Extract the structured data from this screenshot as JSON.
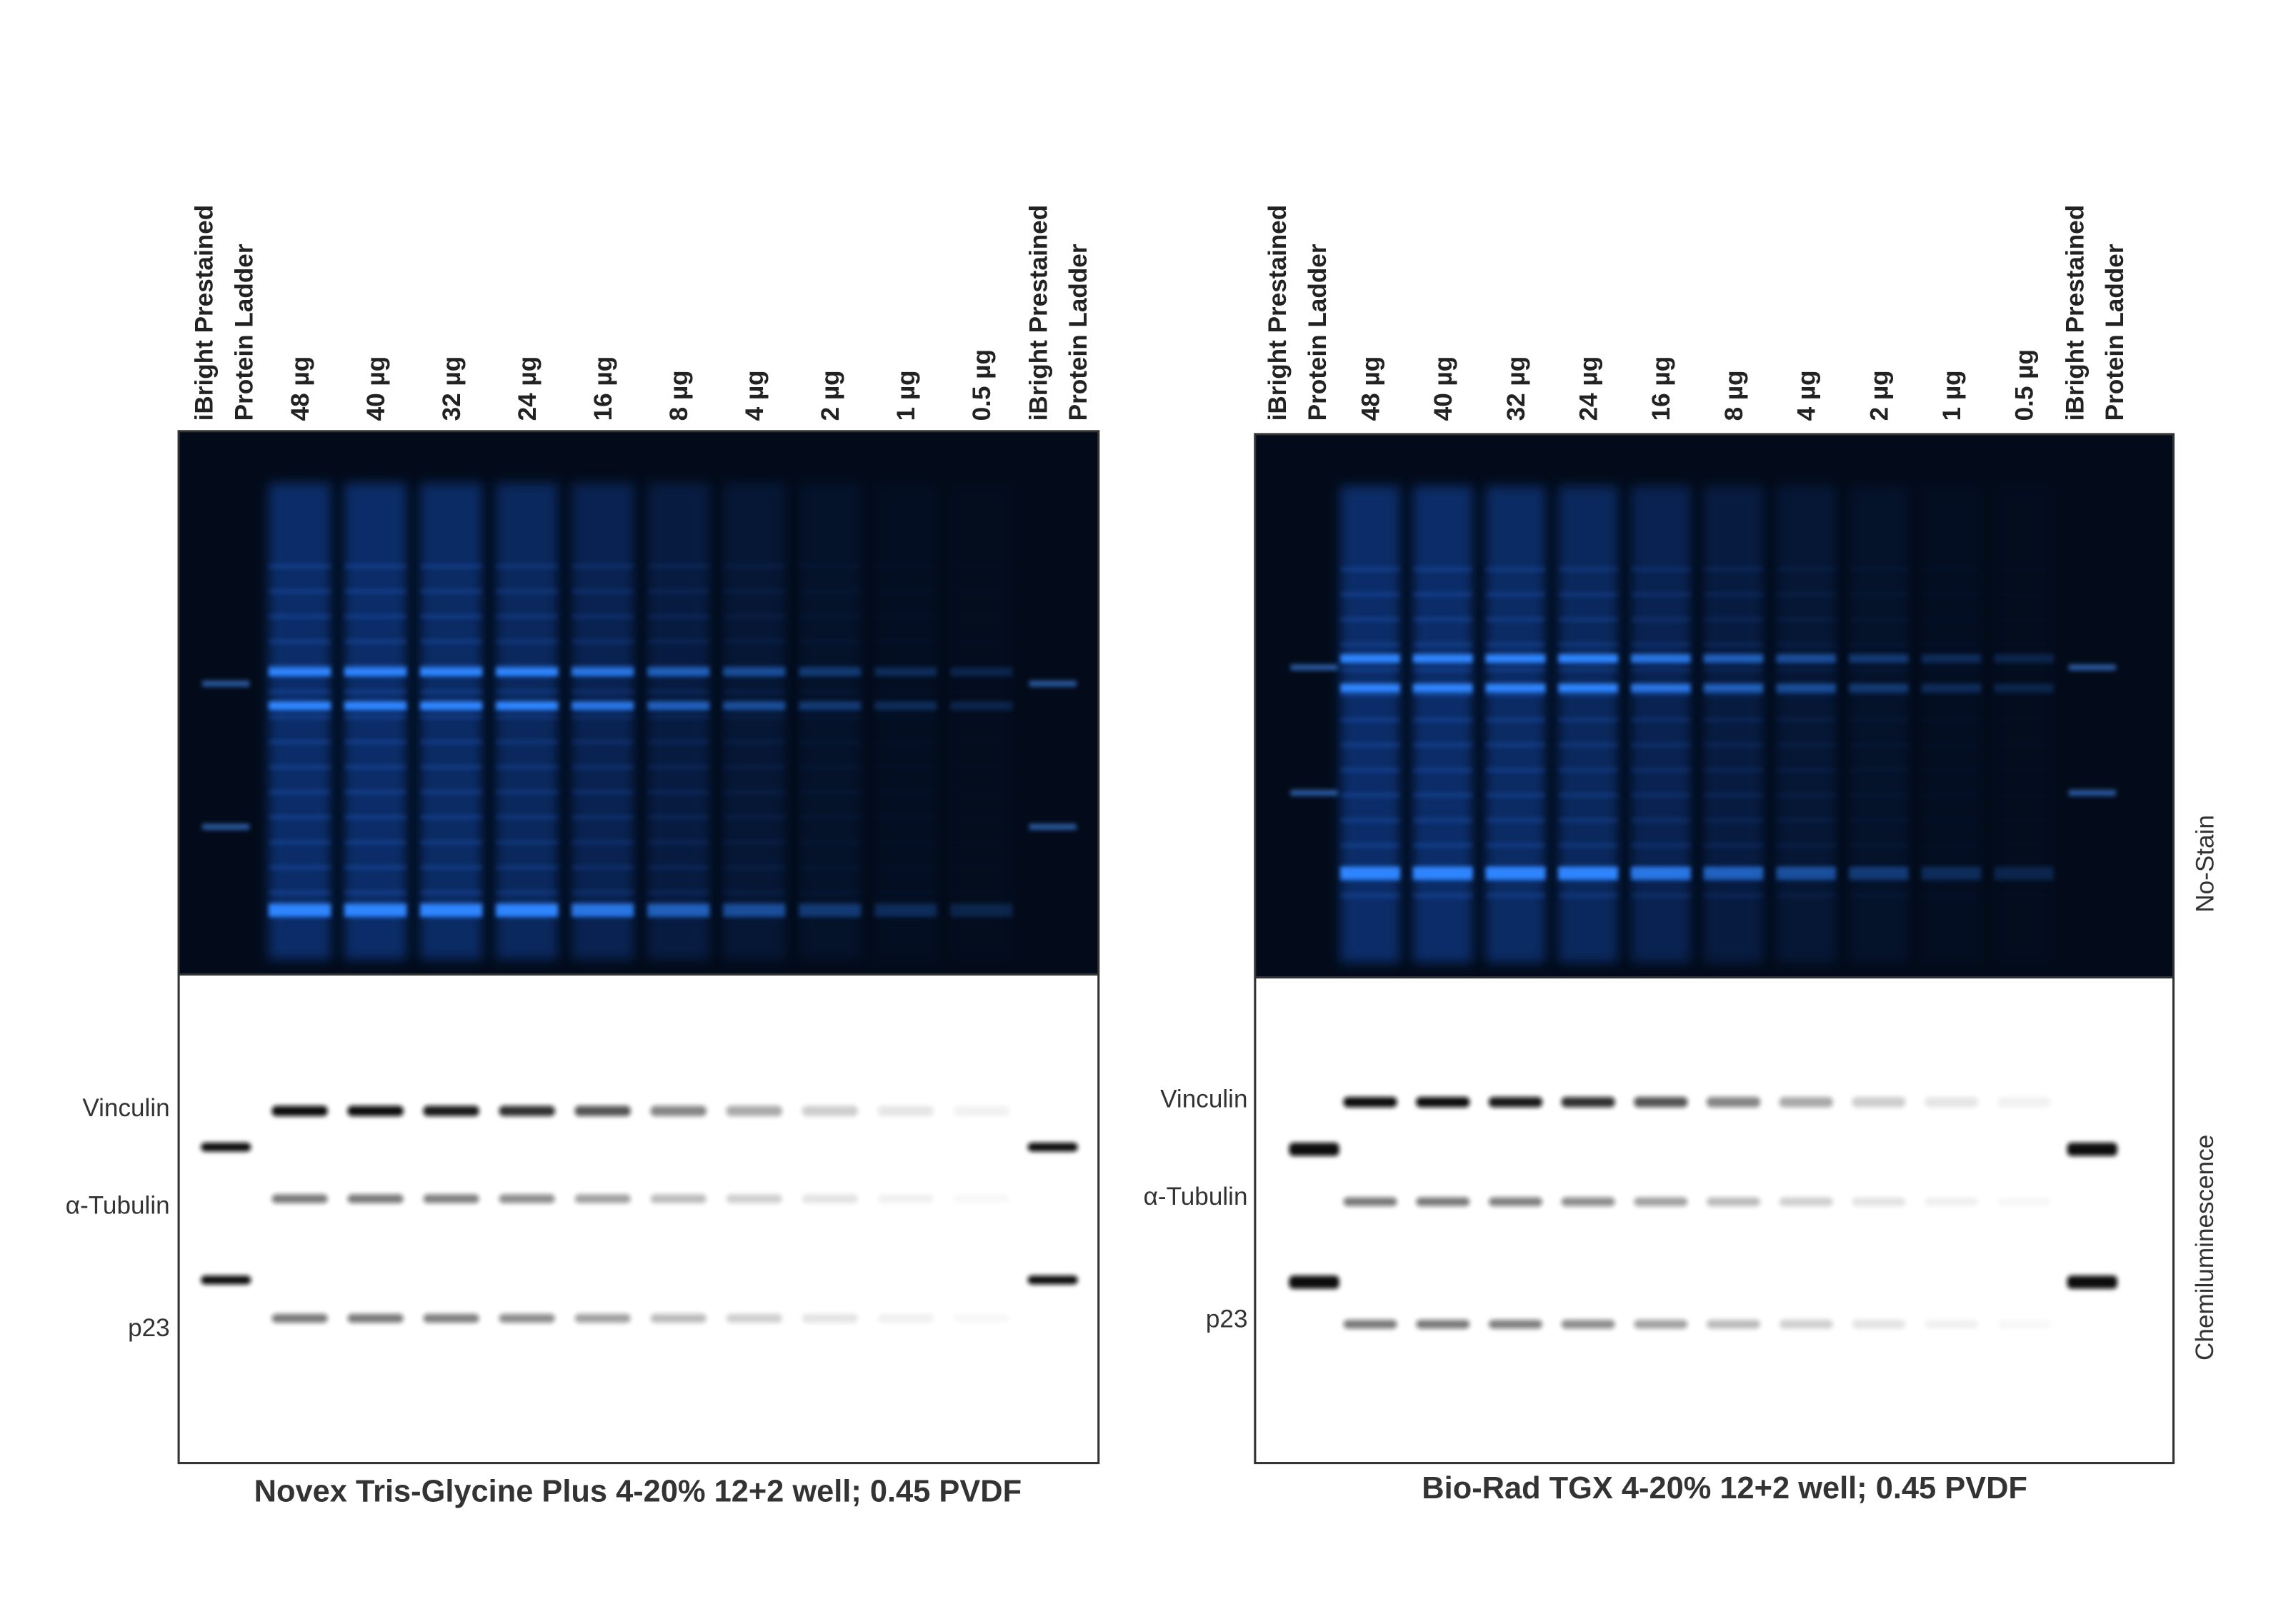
{
  "panels": [
    {
      "ladder_label": [
        "iBright  Prestained",
        "Protein Ladder"
      ],
      "lanes": [
        "48 µg",
        "40 µg",
        "32 µg",
        "24 µg",
        "16 µg",
        "8 µg",
        "4 µg",
        "2 µg",
        "1 µg",
        "0.5 µg"
      ],
      "bands": [
        "Vinculin",
        "α-Tubulin",
        "p23"
      ],
      "caption": "Novex Tris-Glycine Plus 4-20% 12+2 well; 0.45 PVDF"
    },
    {
      "ladder_label": [
        "iBright  Prestained",
        "Protein Ladder"
      ],
      "lanes": [
        "48 µg",
        "40 µg",
        "32 µg",
        "24 µg",
        "16 µg",
        "8 µg",
        "4 µg",
        "2 µg",
        "1 µg",
        "0.5 µg"
      ],
      "bands": [
        "Vinculin",
        "α-Tubulin",
        "p23"
      ],
      "caption": "Bio-Rad TGX 4-20% 12+2 well; 0.45 PVDF"
    }
  ],
  "side_labels": [
    "No-Stain",
    "Chemiluminescence"
  ]
}
